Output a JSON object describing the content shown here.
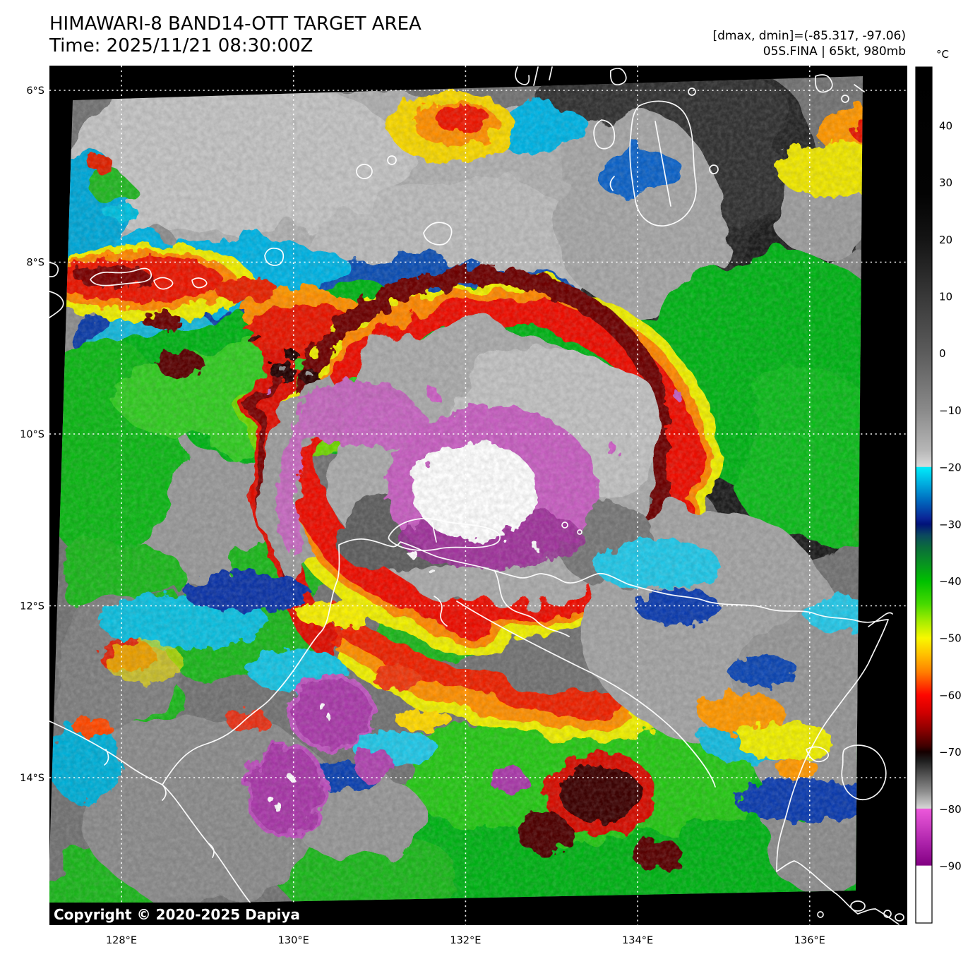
{
  "header": {
    "title_line1": "HIMAWARI-8 BAND14-OTT TARGET AREA",
    "title_line2": "Time: 2025/11/21 08:30:00Z",
    "annotation_line1": "[dmax, dmin]=(-85.317, -97.06)",
    "annotation_line2": "05S.FINA | 65kt, 980mb"
  },
  "map": {
    "copyright": "Copyright © 2020-2025 Dapiya",
    "lat_ticks": [
      {
        "label": "6°S",
        "deg": 6
      },
      {
        "label": "8°S",
        "deg": 8
      },
      {
        "label": "10°S",
        "deg": 10
      },
      {
        "label": "12°S",
        "deg": 12
      },
      {
        "label": "14°S",
        "deg": 14
      }
    ],
    "lon_ticks": [
      {
        "label": "128°E",
        "deg": 128
      },
      {
        "label": "130°E",
        "deg": 130
      },
      {
        "label": "132°E",
        "deg": 132
      },
      {
        "label": "134°E",
        "deg": 134
      },
      {
        "label": "136°E",
        "deg": 136
      }
    ]
  },
  "colorbar": {
    "unit": "°C",
    "ticks": [
      {
        "label": "40",
        "v": 40
      },
      {
        "label": "30",
        "v": 30
      },
      {
        "label": "20",
        "v": 20
      },
      {
        "label": "10",
        "v": 10
      },
      {
        "label": "0",
        "v": 0
      },
      {
        "label": "−10",
        "v": -10
      },
      {
        "label": "−20",
        "v": -20
      },
      {
        "label": "−30",
        "v": -30
      },
      {
        "label": "−40",
        "v": -40
      },
      {
        "label": "−50",
        "v": -50
      },
      {
        "label": "−60",
        "v": -60
      },
      {
        "label": "−70",
        "v": -70
      },
      {
        "label": "−80",
        "v": -80
      },
      {
        "label": "−90",
        "v": -90
      }
    ],
    "stops": [
      {
        "v": 50,
        "c": "#000000"
      },
      {
        "v": 28,
        "c": "#030303"
      },
      {
        "v": 20,
        "c": "#141414"
      },
      {
        "v": 10,
        "c": "#383838"
      },
      {
        "v": 0,
        "c": "#5c5c5c"
      },
      {
        "v": -10,
        "c": "#8a8a8a"
      },
      {
        "v": -17,
        "c": "#b6b6b6"
      },
      {
        "v": -19.9,
        "c": "#d9d9d9"
      },
      {
        "v": -20,
        "c": "#00ecfa"
      },
      {
        "v": -23,
        "c": "#00aade"
      },
      {
        "v": -26,
        "c": "#0066bc"
      },
      {
        "v": -29,
        "c": "#0a2496"
      },
      {
        "v": -30,
        "c": "#001279"
      },
      {
        "v": -32,
        "c": "#0b4a5e"
      },
      {
        "v": -34,
        "c": "#0b6b3c"
      },
      {
        "v": -37,
        "c": "#089420"
      },
      {
        "v": -40,
        "c": "#00c000"
      },
      {
        "v": -44,
        "c": "#46da00"
      },
      {
        "v": -47,
        "c": "#a4ec00"
      },
      {
        "v": -50,
        "c": "#f8f800"
      },
      {
        "v": -53,
        "c": "#ffbe00"
      },
      {
        "v": -56,
        "c": "#ff7e00"
      },
      {
        "v": -60,
        "c": "#fe0600"
      },
      {
        "v": -63,
        "c": "#d20000"
      },
      {
        "v": -66,
        "c": "#8e0000"
      },
      {
        "v": -69,
        "c": "#3e0000"
      },
      {
        "v": -70,
        "c": "#140000"
      },
      {
        "v": -71.5,
        "c": "#1e1e1e"
      },
      {
        "v": -74,
        "c": "#525252"
      },
      {
        "v": -77,
        "c": "#8e8e8e"
      },
      {
        "v": -79.9,
        "c": "#d6d6d6"
      },
      {
        "v": -80,
        "c": "#ec58da"
      },
      {
        "v": -83,
        "c": "#cc3ec2"
      },
      {
        "v": -86,
        "c": "#ac22aa"
      },
      {
        "v": -89.9,
        "c": "#830083"
      },
      {
        "v": -90,
        "c": "#ffffff"
      },
      {
        "v": -100,
        "c": "#ffffff"
      }
    ]
  }
}
